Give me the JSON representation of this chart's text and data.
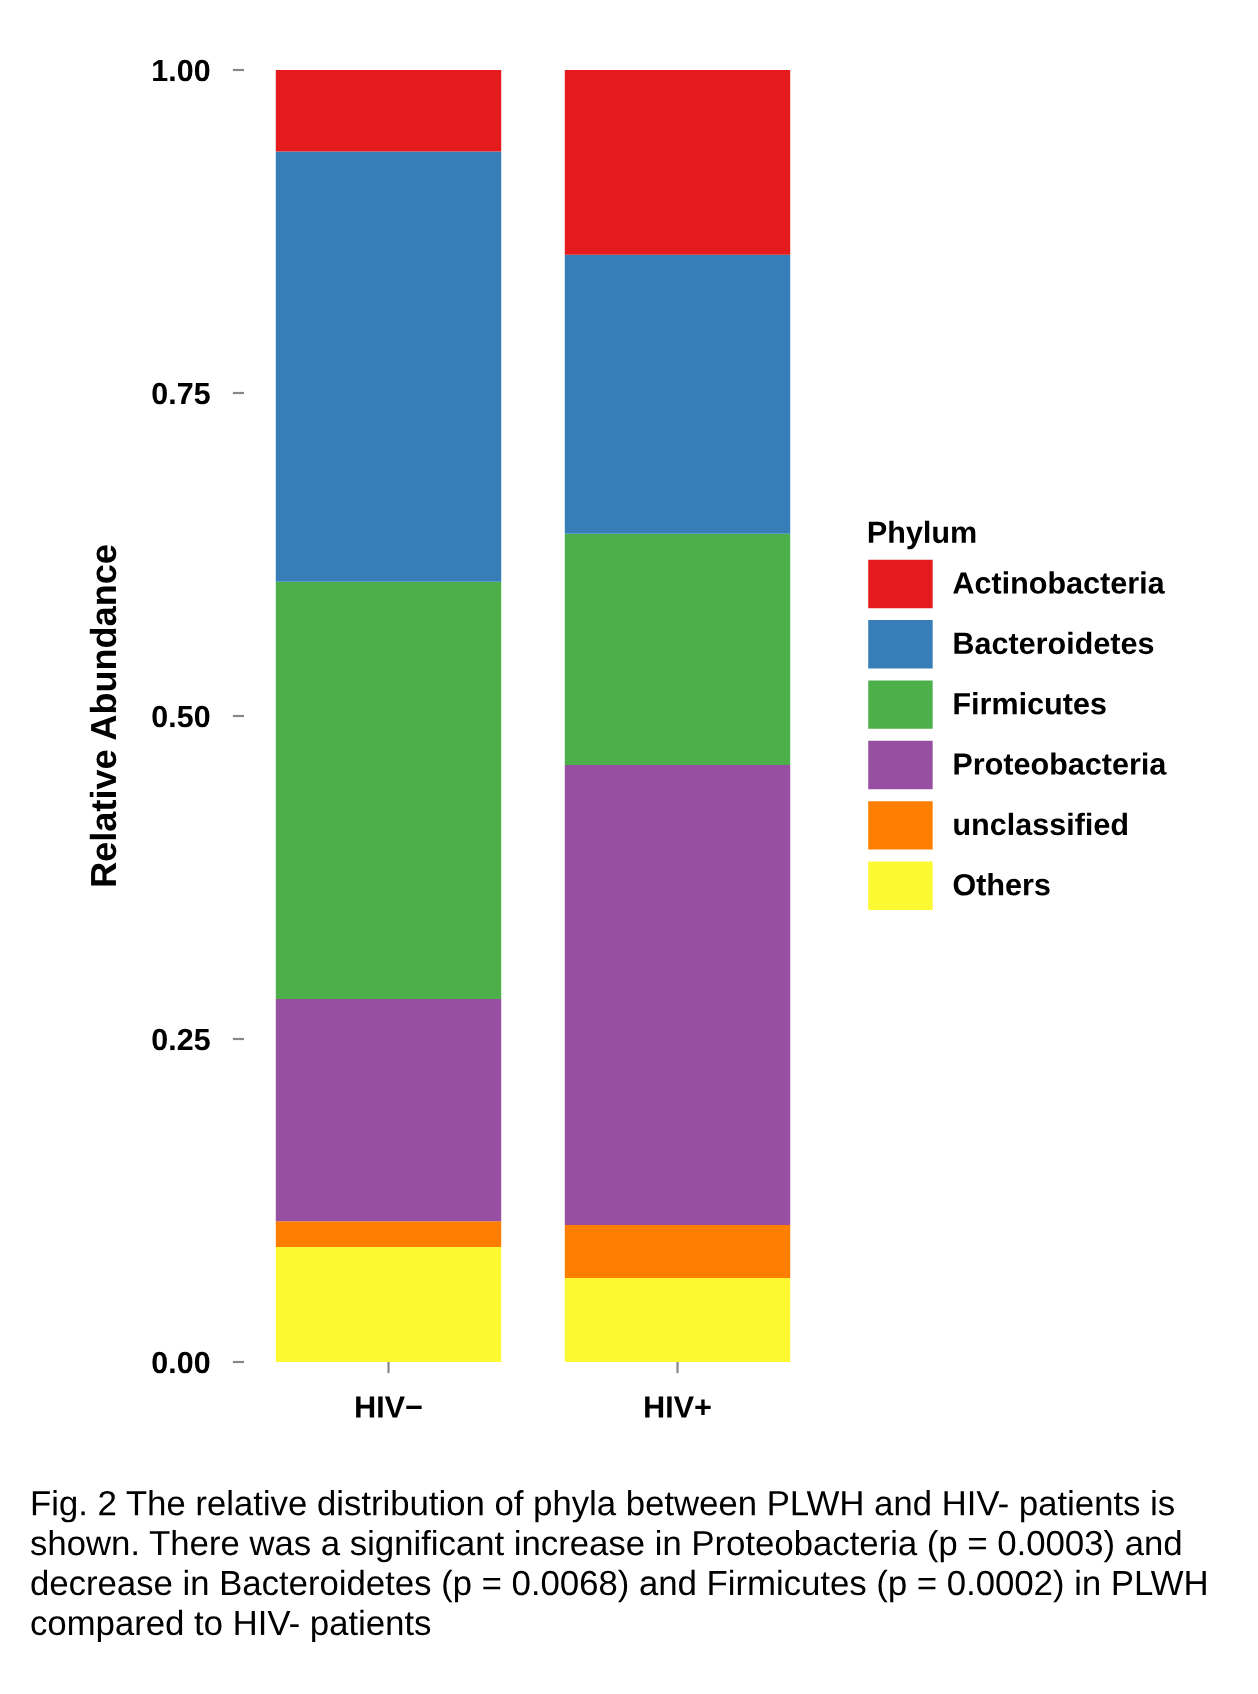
{
  "chart_data": {
    "type": "bar",
    "stacked": true,
    "ylabel": "Relative Abundance",
    "legend_title": "Phylum",
    "legend": "right",
    "grid": false,
    "categories": [
      "HIV−",
      "HIV+"
    ],
    "series": [
      {
        "name": "Others",
        "color": "#fcf933",
        "values": [
          0.089,
          0.065
        ]
      },
      {
        "name": "unclassified",
        "color": "#fe7f00",
        "values": [
          0.02,
          0.041
        ]
      },
      {
        "name": "Proteobacteria",
        "color": "#974fa2",
        "values": [
          0.172,
          0.356
        ]
      },
      {
        "name": "Firmicutes",
        "color": "#4daf4a",
        "values": [
          0.323,
          0.179
        ]
      },
      {
        "name": "Bacteroidetes",
        "color": "#377eb8",
        "values": [
          0.333,
          0.216
        ]
      },
      {
        "name": "Actinobacteria",
        "color": "#e41a1c",
        "values": [
          0.063,
          0.143
        ]
      }
    ],
    "ylim": [
      0,
      1
    ],
    "yticks": [
      {
        "value": 0,
        "label": "0.00"
      },
      {
        "value": 0.25,
        "label": "0.25"
      },
      {
        "value": 0.5,
        "label": "0.50"
      },
      {
        "value": 0.75,
        "label": "0.75"
      },
      {
        "value": 1,
        "label": "1.00"
      }
    ],
    "annotations": [
      "Fig. 2 The relative distribution of phyla between PLWH and HIV- patients is shown. There was a significant increase in Proteobacteria (p = 0.0003) and decrease in Bacteroidetes (p = 0.0068) and Firmicutes (p = 0.0002) in PLWH compared to HIV- patients"
    ]
  }
}
